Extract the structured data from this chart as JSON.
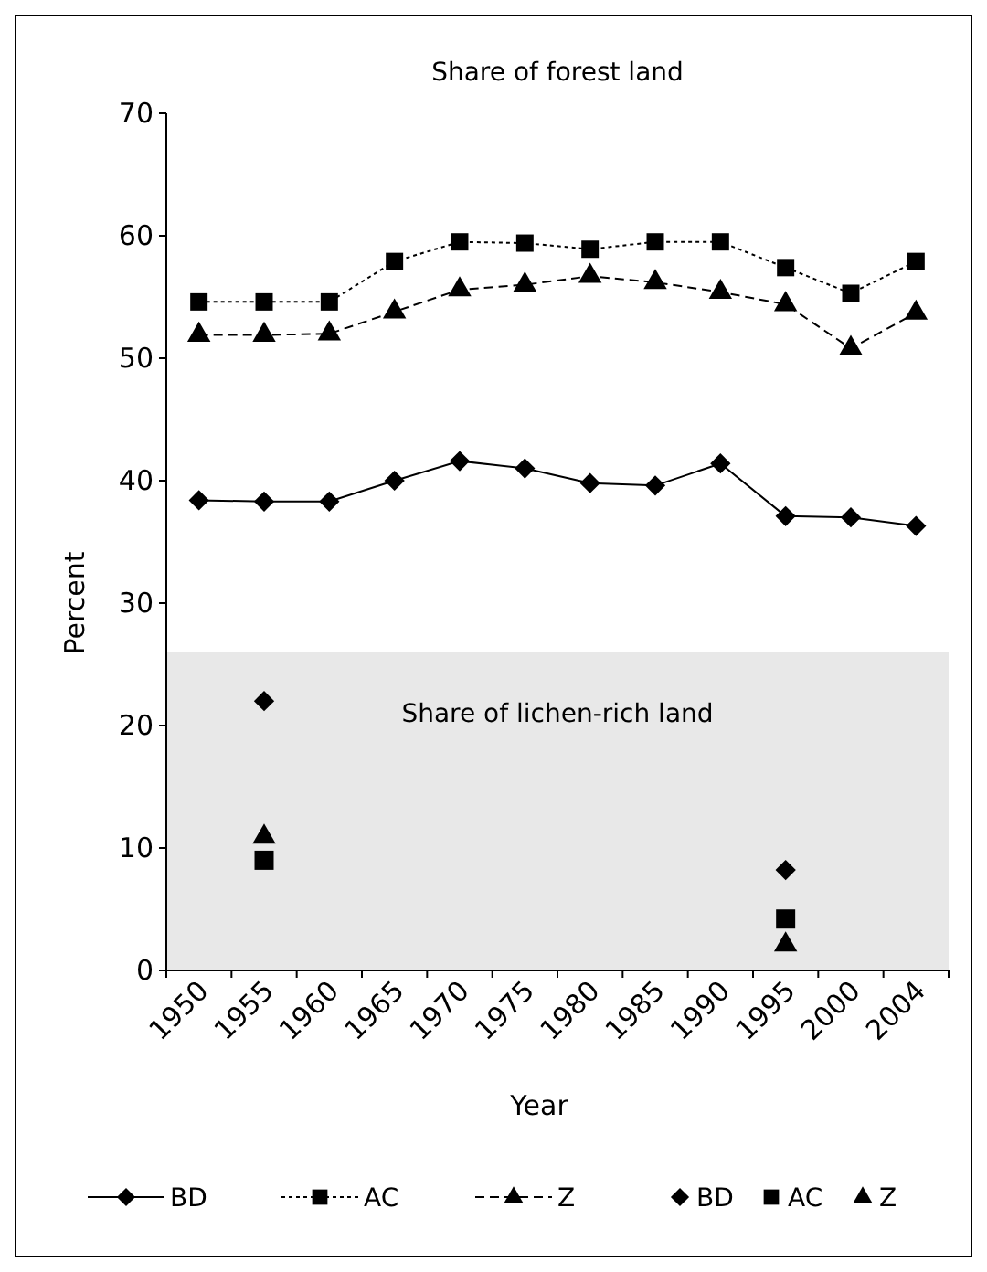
{
  "chart_data": {
    "type": "line",
    "title": "Share of forest land",
    "xlabel": "Year",
    "ylabel": "Percent",
    "categories": [
      "1950",
      "1955",
      "1960",
      "1965",
      "1970",
      "1975",
      "1980",
      "1985",
      "1990",
      "1995",
      "2000",
      "2004"
    ],
    "ylim": [
      0,
      70
    ],
    "yticks": [
      0,
      10,
      20,
      30,
      40,
      50,
      60,
      70
    ],
    "grid": false,
    "legend": "bottom",
    "bands": [
      {
        "axis": "y",
        "from": 0,
        "to": 26,
        "label": "Share of lichen-rich land",
        "color": "#e8e8e8"
      }
    ],
    "series": [
      {
        "name": "BD",
        "color": "#000000",
        "marker": "diamond",
        "line_style": "solid",
        "values": [
          38.4,
          38.3,
          38.3,
          40,
          41.6,
          41,
          39.8,
          39.6,
          41.4,
          37.1,
          37,
          36.3
        ]
      },
      {
        "name": "AC",
        "color": "#000000",
        "marker": "square",
        "line_style": "dotted",
        "values": [
          54.6,
          54.6,
          54.6,
          57.9,
          59.5,
          59.4,
          58.9,
          59.5,
          59.5,
          57.4,
          55.3,
          57.9
        ]
      },
      {
        "name": "Z",
        "color": "#000000",
        "marker": "triangle",
        "line_style": "dashed",
        "values": [
          51.9,
          51.9,
          52,
          53.8,
          55.6,
          56,
          56.7,
          56.2,
          55.4,
          54.4,
          50.8,
          53.7
        ]
      },
      {
        "name": "BD",
        "type": "scatter",
        "color": "#000000",
        "marker": "diamond",
        "values": [
          null,
          22,
          null,
          null,
          null,
          null,
          null,
          null,
          null,
          8.2,
          null,
          null
        ]
      },
      {
        "name": "AC",
        "type": "scatter",
        "color": "#000000",
        "marker": "square",
        "values": [
          null,
          9,
          null,
          null,
          null,
          null,
          null,
          null,
          null,
          4.2,
          null,
          null
        ]
      },
      {
        "name": "Z",
        "type": "scatter",
        "color": "#000000",
        "marker": "triangle",
        "values": [
          null,
          10.9,
          null,
          null,
          null,
          null,
          null,
          null,
          null,
          2.1,
          null,
          null
        ]
      }
    ]
  }
}
